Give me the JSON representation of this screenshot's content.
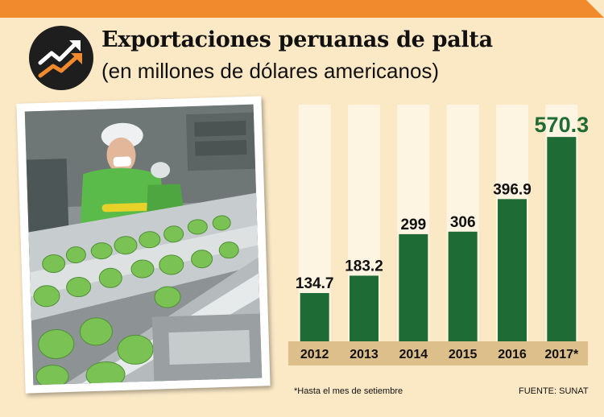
{
  "header": {
    "title": "Exportaciones peruanas de palta",
    "subtitle": "(en millones de dólares americanos)"
  },
  "icon": "trending-up-arrows-icon",
  "colors": {
    "background": "#fbe9c6",
    "top_bar": "#f08a2c",
    "bar": "#1f6b35",
    "bar_highlight_label": "#1f6b35",
    "column_band": "#fdf4e2",
    "axis_band": "#ddbf8c"
  },
  "chart_data": {
    "type": "bar",
    "title": "Exportaciones peruanas de palta",
    "subtitle": "(en millones de dólares americanos)",
    "categories": [
      "2012",
      "2013",
      "2014",
      "2015",
      "2016",
      "2017*"
    ],
    "values": [
      134.7,
      183.2,
      299,
      306,
      396.9,
      570.3
    ],
    "value_labels": [
      "134.7",
      "183.2",
      "299",
      "306",
      "396.9",
      "570.3"
    ],
    "ylim": [
      0,
      620
    ],
    "grid": false,
    "legend": "none",
    "highlight_index": 5
  },
  "footer": {
    "note": "*Hasta el mes de setiembre",
    "source": "FUENTE: SUNAT"
  }
}
